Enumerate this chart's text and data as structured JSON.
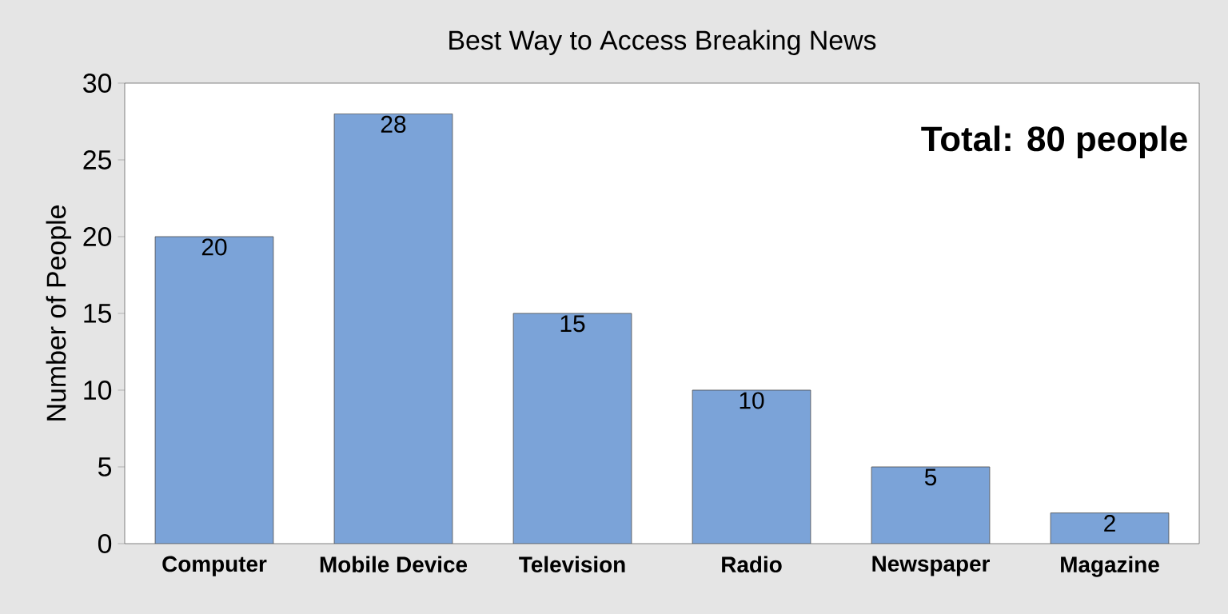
{
  "chart_data": {
    "type": "bar",
    "title": "Best Way to Access Breaking News",
    "ylabel": "Number of People",
    "categories": [
      "Computer",
      "Mobile Device",
      "Television",
      "Radio",
      "Newspaper",
      "Magazine"
    ],
    "values": [
      20,
      28,
      15,
      10,
      5,
      2
    ],
    "color": "#7ba3d8",
    "ylim": [
      0,
      30
    ],
    "yticks": [
      0,
      5,
      10,
      15,
      20,
      25,
      30
    ],
    "data_labels": true,
    "annotations": [
      "**Total: 80 people**"
    ]
  }
}
